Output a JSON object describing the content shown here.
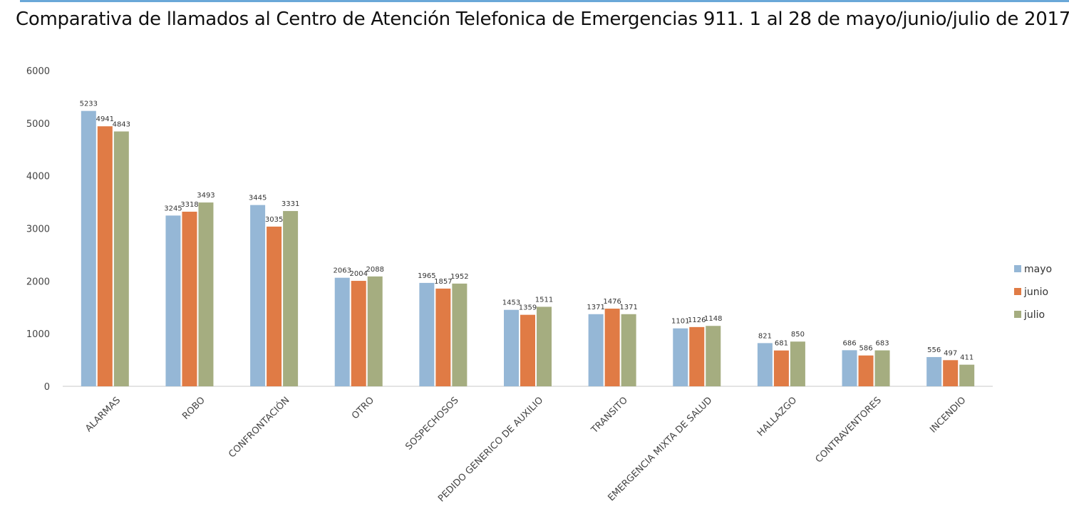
{
  "title": "Comparativa de llamados al Centro de Atención Telefonica de Emergencias 911. 1 al 28 de mayo/junio/julio de 2017",
  "chart_data": {
    "type": "bar",
    "title": "Comparativa de llamados al Centro de Atención Telefonica de Emergencias 911. 1 al 28 de mayo/junio/julio de 2017",
    "xlabel": "",
    "ylabel": "",
    "ylim": [
      0,
      6000
    ],
    "yticks": [
      0,
      1000,
      2000,
      3000,
      4000,
      5000,
      6000
    ],
    "grid": false,
    "legend_position": "right",
    "categories": [
      "ALARMAS",
      "ROBO",
      "CONFRONTACIÓN",
      "OTRO",
      "SOSPECHOSOS",
      "PEDIDO GENERICO DE AUXILIO",
      "TRANSITO",
      "EMERGENCIA MIXTA DE SALUD",
      "HALLAZGO",
      "CONTRAVENTORES",
      "INCENDIO"
    ],
    "series": [
      {
        "name": "mayo",
        "color": "#95b7d6",
        "values": [
          5233,
          3245,
          3445,
          2063,
          1965,
          1453,
          1371,
          1101,
          821,
          686,
          556
        ]
      },
      {
        "name": "junio",
        "color": "#e07b45",
        "values": [
          4941,
          3318,
          3035,
          2004,
          1857,
          1359,
          1476,
          1126,
          681,
          586,
          497
        ]
      },
      {
        "name": "julio",
        "color": "#a5ad80",
        "values": [
          4843,
          3493,
          3331,
          2088,
          1952,
          1511,
          1371,
          1148,
          850,
          683,
          411
        ]
      }
    ]
  }
}
